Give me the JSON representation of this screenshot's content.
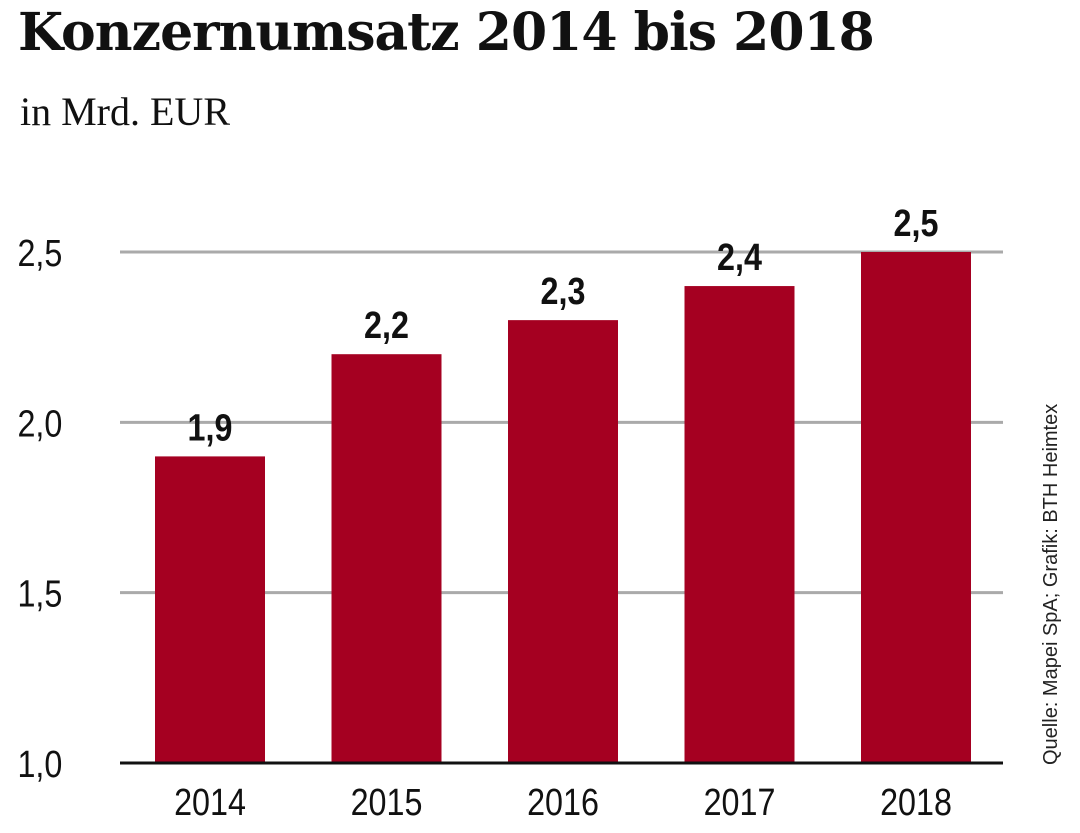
{
  "chart_data": {
    "type": "bar",
    "title": "Konzernumsatz 2014 bis 2018",
    "subtitle": "in Mrd. EUR",
    "categories": [
      "2014",
      "2015",
      "2016",
      "2017",
      "2018"
    ],
    "values": [
      1.9,
      2.2,
      2.3,
      2.4,
      2.5
    ],
    "value_labels": [
      "1,9",
      "2,2",
      "2,3",
      "2,4",
      "2,5"
    ],
    "xlabel": "",
    "ylabel": "",
    "ylim": [
      1.0,
      2.5
    ],
    "yticks": [
      1.0,
      1.5,
      2.0,
      2.5
    ],
    "ytick_labels": [
      "1,0",
      "1,5",
      "2,0",
      "2,5"
    ],
    "grid": true,
    "bar_color": "#a50021",
    "grid_color": "#aaaaaa",
    "source": "Quelle: Mapei SpA; Grafik: BTH Heimtex"
  }
}
